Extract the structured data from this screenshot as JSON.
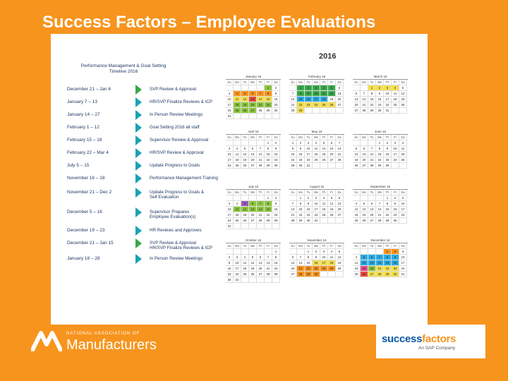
{
  "slide": {
    "title": "Success Factors – Employee Evaluations"
  },
  "timeline": {
    "title_line1": "Performance Management & Goal Setting",
    "title_line2": "Timeline 2016",
    "rows": [
      {
        "date": "December 21 – Jan 6",
        "label1": "SVP Review & Approval",
        "label2": "",
        "color": "green"
      },
      {
        "date": "January 7 – 13",
        "label1": "HR/SVP Finalize Reviews & ICP",
        "label2": "",
        "color": "teal"
      },
      {
        "date": "January 14 – 27",
        "label1": "In Person Review Meetings",
        "label2": "",
        "color": "teal"
      },
      {
        "date": "February 1 – 12",
        "label1": "Goal Setting 2016 all staff",
        "label2": "",
        "color": "teal"
      },
      {
        "date": "February 15 – 18",
        "label1": "Supervisor Review & Approval",
        "label2": "",
        "color": "teal"
      },
      {
        "date": "February 22 – Mar 4",
        "label1": "HR/SVP Review & Approval",
        "label2": "",
        "color": "teal"
      },
      {
        "date": "July 5 – 15",
        "label1": "Update Progress to Goals",
        "label2": "",
        "color": "teal"
      },
      {
        "date": "November 16 – 18",
        "label1": "Performance Management Training",
        "label2": "",
        "color": "teal"
      },
      {
        "date": "November 21 – Dec 2",
        "label1": "Update Progress to Goals &",
        "label2": "Self Evaluation",
        "color": "teal"
      },
      {
        "date": "December 5 – 16",
        "label1": "Supervisor Prepares",
        "label2": "Employee Evaluation(s)",
        "color": "teal"
      },
      {
        "date": "December 19 – 23",
        "label1": "HR Reviews and Approves",
        "label2": "",
        "color": "teal"
      },
      {
        "date": "December 21 – Jan 15",
        "label1": "SVP Review & Approval",
        "label2": "HR/SVP Finalize Reviews & ICP",
        "color": "green"
      },
      {
        "date": "January 18 – 28",
        "label1": "In Person Review Meetings",
        "label2": "",
        "color": "teal"
      }
    ]
  },
  "calendar": {
    "year": "2016",
    "weekdays": [
      "Su",
      "Mo",
      "Tu",
      "We",
      "Th",
      "Fr",
      "Sa"
    ],
    "months": [
      {
        "name": "January 16",
        "start": 5,
        "days": 31
      },
      {
        "name": "February 16",
        "start": 1,
        "days": 29
      },
      {
        "name": "March 16",
        "start": 2,
        "days": 31
      },
      {
        "name": "April 16",
        "start": 5,
        "days": 30
      },
      {
        "name": "May 16",
        "start": 0,
        "days": 31
      },
      {
        "name": "June 16",
        "start": 3,
        "days": 30
      },
      {
        "name": "July 16",
        "start": 5,
        "days": 31
      },
      {
        "name": "August 16",
        "start": 1,
        "days": 31
      },
      {
        "name": "September 16",
        "start": 4,
        "days": 30
      },
      {
        "name": "October 16",
        "start": 6,
        "days": 31
      },
      {
        "name": "November 16",
        "start": 2,
        "days": 30
      },
      {
        "name": "December 16",
        "start": 4,
        "days": 31
      }
    ],
    "highlights": {
      "0": {
        "1": "#8dc63f",
        "4": "#f7941d",
        "5": "#f7941d",
        "6": "#f7941d",
        "7": "#f7941d",
        "8": "#f7941d",
        "11": "#f4e04d",
        "12": "#f4e04d",
        "13": "#e84c3d",
        "14": "#f4e04d",
        "15": "#f4e04d",
        "18": "#8dc63f",
        "19": "#8dc63f",
        "20": "#8dc63f",
        "21": "#8dc63f",
        "22": "#8dc63f",
        "25": "#8dc63f",
        "26": "#8dc63f",
        "27": "#8dc63f"
      },
      "1": {
        "1": "#3aa74a",
        "2": "#3aa74a",
        "3": "#3aa74a",
        "4": "#3aa74a",
        "5": "#3aa74a",
        "8": "#3aa74a",
        "9": "#3aa74a",
        "10": "#3aa74a",
        "11": "#3aa74a",
        "12": "#3aa74a",
        "15": "#29abe2",
        "16": "#29abe2",
        "17": "#29abe2",
        "18": "#29abe2",
        "22": "#f4e04d",
        "23": "#f4e04d",
        "24": "#f4e04d",
        "25": "#f4e04d",
        "26": "#f4e04d",
        "29": "#f4e04d"
      },
      "2": {
        "1": "#f4e04d",
        "2": "#f4e04d",
        "3": "#f4e04d",
        "4": "#f4e04d"
      },
      "6": {
        "5": "#9b59b6",
        "6": "#8dc63f",
        "7": "#8dc63f",
        "8": "#8dc63f",
        "11": "#8dc63f",
        "12": "#8dc63f",
        "13": "#8dc63f",
        "14": "#8dc63f",
        "15": "#8dc63f"
      },
      "10": {
        "16": "#f4e04d",
        "17": "#f4e04d",
        "18": "#f4e04d",
        "21": "#f7941d",
        "22": "#f7941d",
        "23": "#f7941d",
        "24": "#f7941d",
        "25": "#f7941d",
        "28": "#f7941d",
        "29": "#f7941d",
        "30": "#f7941d"
      },
      "11": {
        "1": "#f7941d",
        "2": "#f7941d",
        "5": "#29abe2",
        "6": "#29abe2",
        "7": "#29abe2",
        "8": "#29abe2",
        "9": "#29abe2",
        "12": "#29abe2",
        "13": "#29abe2",
        "14": "#29abe2",
        "15": "#29abe2",
        "16": "#29abe2",
        "19": "#e84c8d",
        "20": "#8dc63f",
        "21": "#f4e04d",
        "22": "#f4e04d",
        "23": "#f4e04d",
        "26": "#e84c3d",
        "27": "#f4e04d",
        "28": "#f4e04d",
        "29": "#f4e04d",
        "30": "#f4e04d"
      }
    }
  },
  "logos": {
    "nam_small": "NATIONAL ASSOCIATION OF",
    "nam_big": "Manufacturers",
    "sf_part1": "success",
    "sf_part2": "factors",
    "sf_tag": "An SAP Company"
  }
}
